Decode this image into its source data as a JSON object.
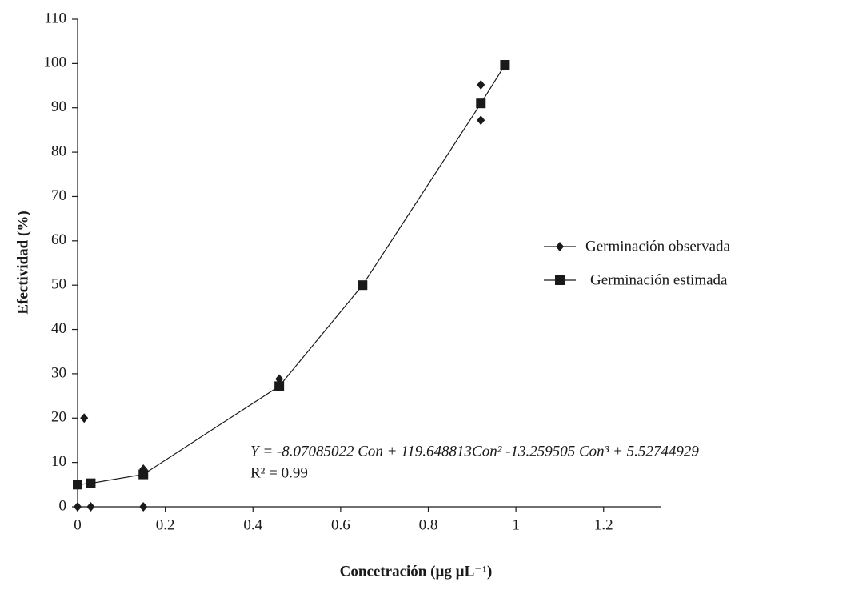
{
  "chart_data": {
    "type": "scatter",
    "xlabel": "Concetración (µg µL⁻¹)",
    "ylabel": "Efectividad (%)",
    "xlim": [
      0,
      1.33
    ],
    "ylim": [
      0,
      110
    ],
    "xticks": [
      0,
      0.2,
      0.4,
      0.6,
      0.8,
      1,
      1.2
    ],
    "yticks": [
      0,
      10,
      20,
      30,
      40,
      50,
      60,
      70,
      80,
      90,
      100,
      110
    ],
    "series": [
      {
        "name": "Germinación observada",
        "color": "#1a1a1a",
        "marker": "diamond",
        "line": false,
        "x": [
          0,
          0.03,
          0.15,
          0.015,
          0.15,
          0.46,
          0.92,
          0.92
        ],
        "values": [
          0,
          0,
          0,
          20,
          8.5,
          28.8,
          95.2,
          87.2
        ]
      },
      {
        "name": "Germinación estimada",
        "color": "#1a1a1a",
        "marker": "square",
        "line": true,
        "x": [
          0,
          0.03,
          0.15,
          0.46,
          0.65,
          0.92,
          0.975
        ],
        "values": [
          5,
          5.3,
          7.3,
          27.2,
          50,
          91,
          99.7
        ]
      }
    ],
    "annotations": [
      "Y = -8.07085022 Con + 119.648813Con² -13.259505 Con³ + 5.52744929",
      "R² = 0.99"
    ]
  }
}
